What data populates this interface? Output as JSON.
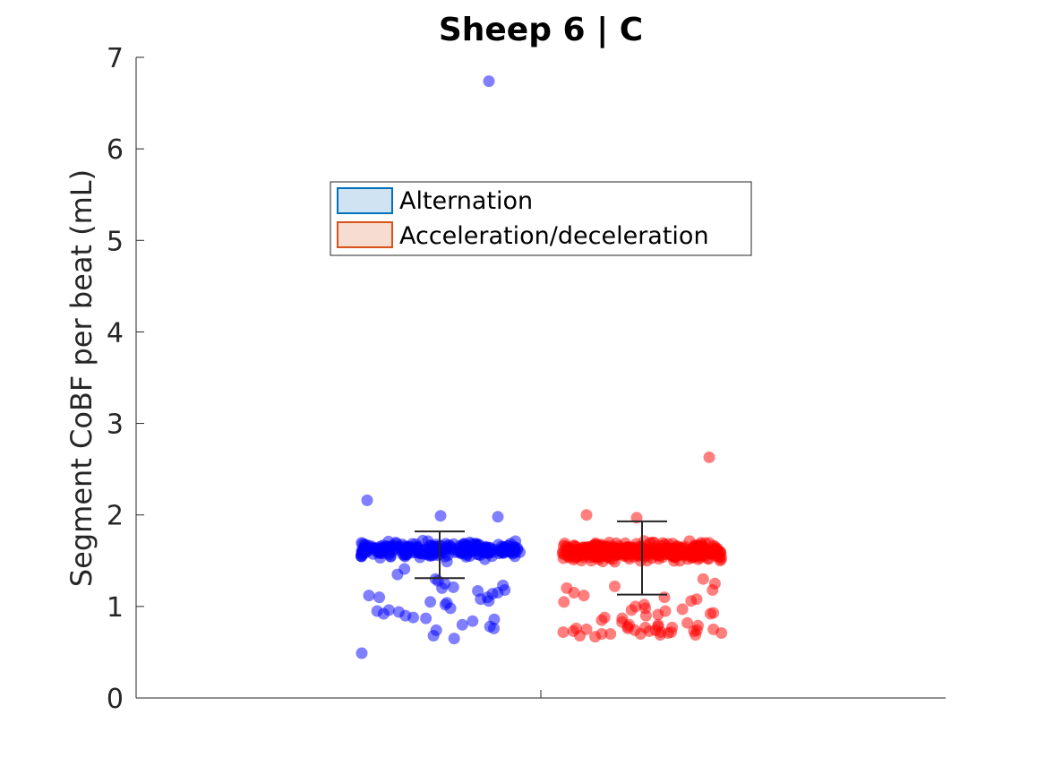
{
  "chart_data": {
    "type": "scatter",
    "title": "Sheep 6 | C",
    "ylabel": "Segment CoBF per beat (mL)",
    "xlabel": "",
    "ylim": [
      0,
      7
    ],
    "yticks": [
      0,
      1,
      2,
      3,
      4,
      5,
      6,
      7
    ],
    "grid": false,
    "legend_position": "upper-center",
    "series": [
      {
        "name": "Alternation",
        "color": "#0000ff",
        "legend_face": "#cfe3f2",
        "legend_edge": "#0072bd",
        "summary": {
          "mean": 1.56,
          "lower": 1.31,
          "upper": 1.82
        },
        "outliers": [
          6.74,
          2.16,
          1.99,
          1.98,
          0.49
        ],
        "cluster_center": 1.62,
        "cluster_spread": 0.12,
        "lower_values": [
          1.41,
          1.3,
          1.25,
          1.21,
          1.2,
          1.17,
          1.14,
          1.12,
          1.1,
          1.08,
          1.06,
          1.04,
          1.02,
          0.98,
          0.96,
          0.94,
          0.92,
          0.88,
          0.86,
          0.84,
          0.8,
          0.78,
          0.76,
          0.74,
          0.68,
          0.65,
          1.35,
          1.28,
          1.18,
          1.1,
          1.05,
          0.95,
          0.9,
          0.87,
          1.23,
          1.15
        ],
        "dense_count": 260
      },
      {
        "name": "Acceleration/deceleration",
        "color": "#ff0000",
        "legend_face": "#f7dcd2",
        "legend_edge": "#d95319",
        "summary": {
          "mean": 1.53,
          "lower": 1.13,
          "upper": 1.93
        },
        "outliers": [
          2.63,
          2.0,
          1.97
        ],
        "cluster_center": 1.6,
        "cluster_spread": 0.13,
        "lower_values": [
          1.3,
          1.22,
          1.2,
          1.15,
          1.12,
          1.1,
          1.05,
          1.0,
          0.98,
          0.96,
          0.95,
          0.92,
          0.9,
          0.88,
          0.85,
          0.82,
          0.8,
          0.79,
          0.78,
          0.77,
          0.76,
          0.75,
          0.74,
          0.73,
          0.72,
          0.71,
          0.7,
          0.69,
          0.68,
          0.67,
          0.72,
          0.74,
          0.76,
          0.73,
          0.71,
          0.7,
          0.78,
          0.8,
          0.75,
          0.72,
          0.69,
          0.74,
          0.77,
          0.7,
          0.73,
          1.08,
          1.02,
          0.93,
          0.87,
          1.18,
          1.25,
          0.83,
          0.97,
          1.06,
          0.91
        ],
        "dense_count": 380
      }
    ]
  }
}
